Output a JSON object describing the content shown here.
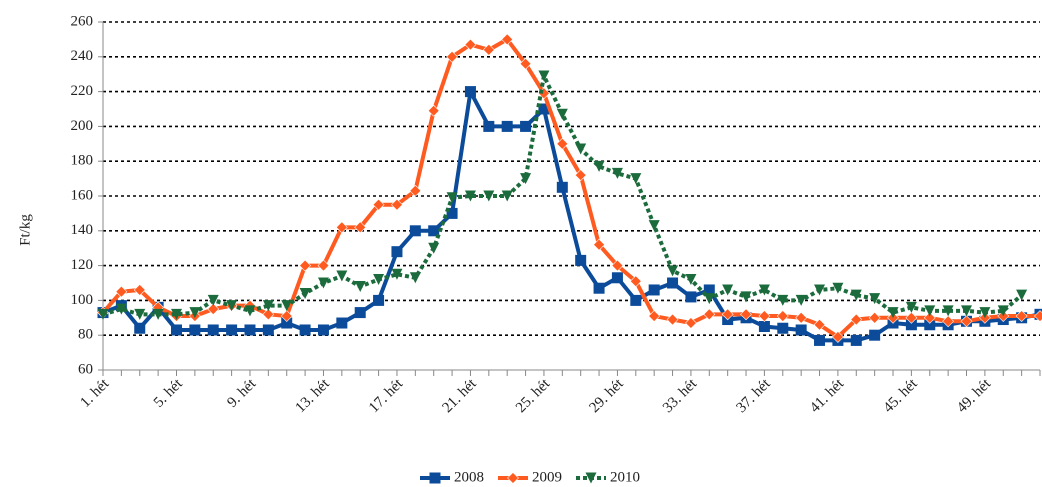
{
  "chart_data": {
    "type": "line",
    "y_label": "Ft/kg",
    "categories": [
      "1. hét",
      null,
      null,
      null,
      "5. hét",
      null,
      null,
      null,
      "9. hét",
      null,
      null,
      null,
      "13. hét",
      null,
      null,
      null,
      "17. hét",
      null,
      null,
      null,
      "21. hét",
      null,
      null,
      null,
      "25. hét",
      null,
      null,
      null,
      "29. hét",
      null,
      null,
      null,
      "33. hét",
      null,
      null,
      null,
      "37. hét",
      null,
      null,
      null,
      "41. hét",
      null,
      null,
      null,
      "45. hét",
      null,
      null,
      null,
      "49. hét",
      null,
      null,
      null
    ],
    "series": [
      {
        "name": "2008",
        "color": "#0b4b9a",
        "marker": "square",
        "dash": false,
        "values": [
          93,
          97,
          84,
          96,
          83,
          83,
          83,
          83,
          83,
          83,
          87,
          83,
          83,
          87,
          93,
          100,
          128,
          140,
          140,
          150,
          220,
          200,
          200,
          200,
          210,
          165,
          123,
          107,
          113,
          100,
          106,
          110,
          102,
          106,
          89,
          90,
          85,
          84,
          83,
          77,
          77,
          77,
          80,
          87,
          86,
          86,
          86,
          88,
          88,
          89,
          90,
          92
        ]
      },
      {
        "name": "2009",
        "color": "#ff5a1f",
        "marker": "diamond",
        "dash": false,
        "values": [
          93,
          105,
          106,
          96,
          91,
          91,
          95,
          97,
          97,
          92,
          91,
          120,
          120,
          142,
          142,
          155,
          155,
          163,
          209,
          240,
          247,
          244,
          250,
          236,
          219,
          190,
          172,
          132,
          120,
          111,
          91,
          89,
          87,
          92,
          92,
          92,
          91,
          91,
          90,
          86,
          79,
          89,
          90,
          90,
          90,
          90,
          88,
          88,
          90,
          91,
          91,
          91
        ]
      },
      {
        "name": "2010",
        "color": "#1c6b3c",
        "marker": "triangle-down",
        "dash": true,
        "values": [
          92,
          95,
          92,
          92,
          92,
          93,
          100,
          97,
          94,
          97,
          97,
          104,
          110,
          114,
          108,
          112,
          115,
          113,
          130,
          159,
          160,
          160,
          160,
          170,
          229,
          207,
          187,
          177,
          173,
          170,
          143,
          117,
          112,
          101,
          106,
          102,
          106,
          100,
          100,
          106,
          107,
          103,
          101,
          93,
          96,
          94,
          94,
          94,
          93,
          94,
          103,
          null
        ]
      }
    ],
    "ylim": [
      60,
      260
    ],
    "yticks": [
      60,
      80,
      100,
      120,
      140,
      160,
      180,
      200,
      220,
      240,
      260
    ],
    "grid": true,
    "legend": "bottom"
  }
}
